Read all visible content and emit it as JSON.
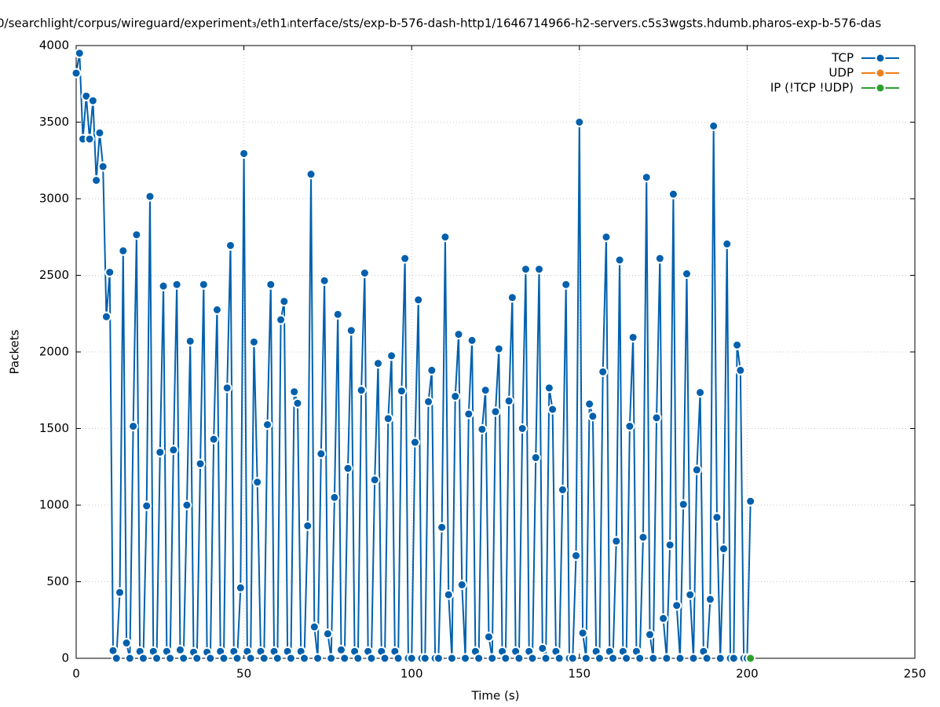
{
  "chart_data": {
    "type": "line",
    "title": "0/searchlight/corpus/wireguard/experiment₃/eth1ᵢnterface/sts/exp-b-576-dash-http1/1646714966-h2-servers.c5s3wgsts.hdumb.pharos-exp-b-576-das",
    "xlabel": "Time (s)",
    "ylabel": "Packets",
    "xlim": [
      0,
      250
    ],
    "xticks": [
      0,
      50,
      100,
      150,
      200,
      250
    ],
    "ylim": [
      0,
      4000
    ],
    "yticks": [
      0,
      500,
      1000,
      1500,
      2000,
      2500,
      3000,
      3500,
      4000
    ],
    "grid": true,
    "legend": "top-right",
    "series": [
      {
        "name": "TCP",
        "color": "#0060ad",
        "x": [
          0,
          1,
          2,
          3,
          4,
          5,
          6,
          7,
          8,
          9,
          10,
          11,
          12,
          13,
          14,
          15,
          16,
          17,
          18,
          19,
          20,
          21,
          22,
          23,
          24,
          25,
          26,
          27,
          28,
          29,
          30,
          31,
          32,
          33,
          34,
          35,
          36,
          37,
          38,
          39,
          40,
          41,
          42,
          43,
          44,
          45,
          46,
          47,
          48,
          49,
          50,
          51,
          52,
          53,
          54,
          55,
          56,
          57,
          58,
          59,
          60,
          61,
          62,
          63,
          64,
          65,
          66,
          67,
          68,
          69,
          70,
          71,
          72,
          73,
          74,
          75,
          76,
          77,
          78,
          79,
          80,
          81,
          82,
          83,
          84,
          85,
          86,
          87,
          88,
          89,
          90,
          91,
          92,
          93,
          94,
          95,
          96,
          97,
          98,
          99,
          100,
          101,
          102,
          103,
          104,
          105,
          106,
          107,
          108,
          109,
          110,
          111,
          112,
          113,
          114,
          115,
          116,
          117,
          118,
          119,
          120,
          121,
          122,
          123,
          124,
          125,
          126,
          127,
          128,
          129,
          130,
          131,
          132,
          133,
          134,
          135,
          136,
          137,
          138,
          139,
          140,
          141,
          142,
          143,
          144,
          145,
          146,
          147,
          148,
          149,
          150,
          151,
          152,
          153,
          154,
          155,
          156,
          157,
          158,
          159,
          160,
          161,
          162,
          163,
          164,
          165,
          166,
          167,
          168,
          169,
          170,
          171,
          172,
          173,
          174,
          175,
          176,
          177,
          178,
          179,
          180,
          181,
          182,
          183,
          184,
          185,
          186,
          187,
          188,
          189,
          190,
          191,
          192,
          193,
          194,
          195,
          196,
          197,
          198,
          199,
          200,
          201
        ],
        "values": [
          3820,
          3950,
          3390,
          3670,
          3390,
          3640,
          3120,
          3430,
          3210,
          2230,
          2520,
          50,
          0,
          430,
          2660,
          100,
          0,
          1515,
          2765,
          45,
          0,
          995,
          3015,
          45,
          0,
          1345,
          2430,
          45,
          0,
          1360,
          2440,
          55,
          0,
          1000,
          2070,
          40,
          0,
          1270,
          2440,
          40,
          0,
          1430,
          2275,
          45,
          0,
          1765,
          2695,
          45,
          0,
          460,
          3295,
          45,
          0,
          2065,
          1150,
          45,
          0,
          1525,
          2440,
          45,
          0,
          2210,
          2330,
          45,
          0,
          1740,
          1665,
          45,
          0,
          865,
          3160,
          205,
          0,
          1335,
          2465,
          160,
          0,
          1050,
          2245,
          55,
          0,
          1240,
          2140,
          45,
          0,
          1750,
          2515,
          45,
          0,
          1165,
          1925,
          45,
          0,
          1565,
          1975,
          45,
          0,
          1745,
          2610,
          0,
          0,
          1410,
          2340,
          0,
          0,
          1675,
          1880,
          0,
          0,
          855,
          2750,
          415,
          0,
          1710,
          2115,
          480,
          0,
          1595,
          2075,
          45,
          0,
          1495,
          1750,
          140,
          0,
          1610,
          2020,
          45,
          0,
          1680,
          2355,
          45,
          0,
          1500,
          2540,
          45,
          0,
          1310,
          2540,
          65,
          0,
          1765,
          1625,
          45,
          0,
          1100,
          2440,
          0,
          0,
          670,
          3500,
          165,
          0,
          1660,
          1580,
          45,
          0,
          1870,
          2750,
          45,
          0,
          765,
          2600,
          45,
          0,
          1515,
          2095,
          45,
          0,
          790,
          3140,
          155,
          0,
          1570,
          2610,
          260,
          0,
          740,
          3030,
          345,
          0,
          1005,
          2510,
          415,
          0,
          1230,
          1735,
          45,
          0,
          385,
          3475,
          920,
          0,
          715,
          2705,
          0,
          0,
          2045,
          1880,
          0,
          0,
          1025
        ]
      },
      {
        "name": "UDP",
        "color": "#f07f1a",
        "x": [],
        "values": []
      },
      {
        "name": "IP (!TCP  !UDP)",
        "color": "#2ca02c",
        "x": [
          201
        ],
        "values": [
          0
        ]
      }
    ]
  }
}
